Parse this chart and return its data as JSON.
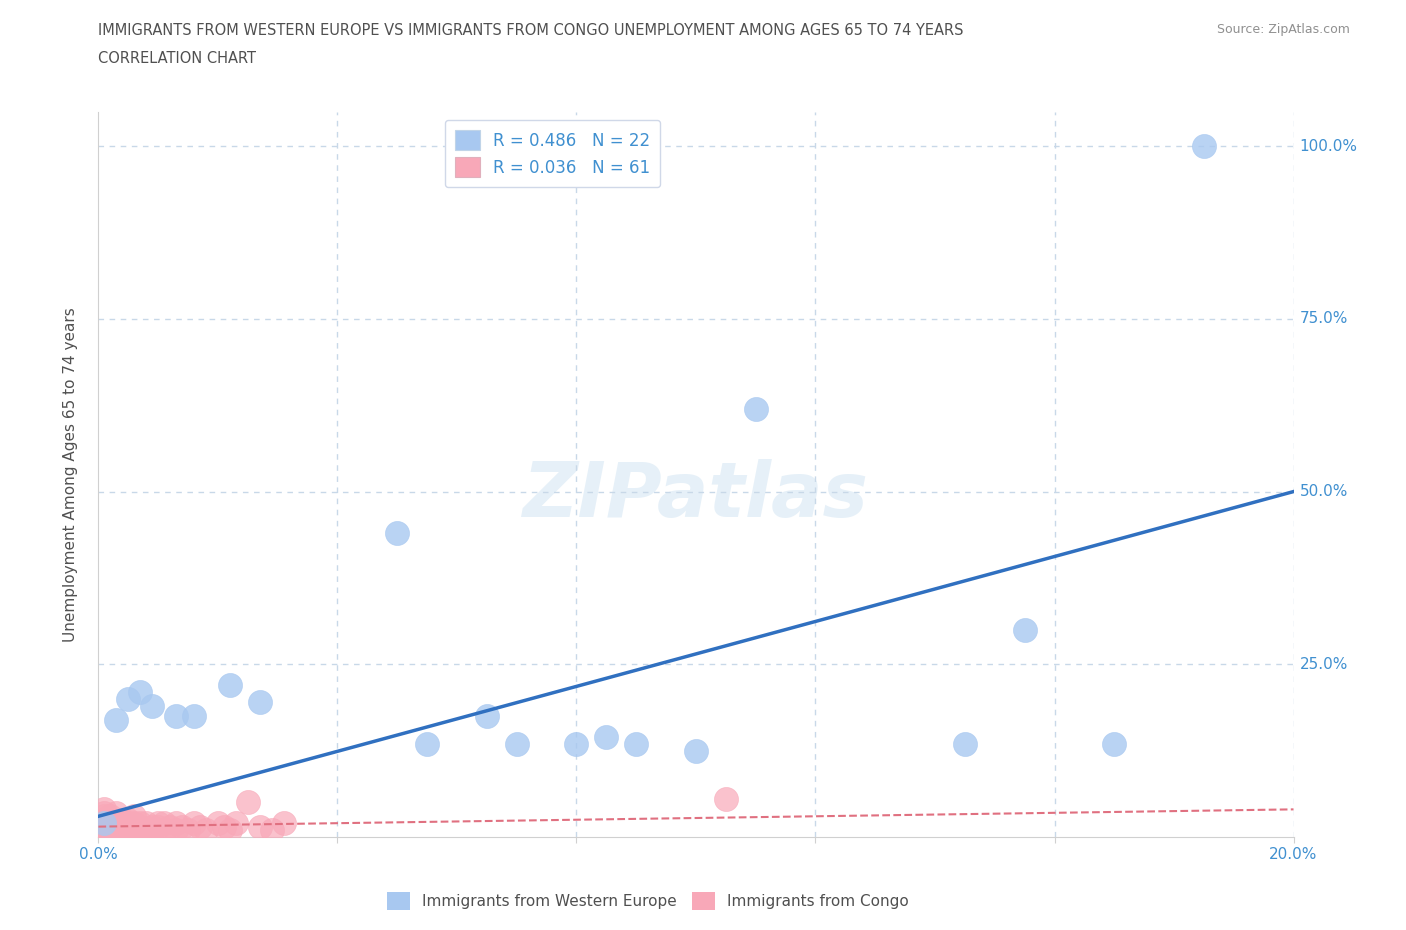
{
  "title_line1": "IMMIGRANTS FROM WESTERN EUROPE VS IMMIGRANTS FROM CONGO UNEMPLOYMENT AMONG AGES 65 TO 74 YEARS",
  "title_line2": "CORRELATION CHART",
  "source": "Source: ZipAtlas.com",
  "ylabel": "Unemployment Among Ages 65 to 74 years",
  "xlim": [
    0.0,
    0.2
  ],
  "ylim": [
    0.0,
    1.05
  ],
  "xticks": [
    0.0,
    0.04,
    0.08,
    0.12,
    0.16,
    0.2
  ],
  "xticklabels": [
    "0.0%",
    "",
    "",
    "",
    "",
    "20.0%"
  ],
  "yticks": [
    0.0,
    0.25,
    0.5,
    0.75,
    1.0
  ],
  "yticklabels": [
    "",
    "25.0%",
    "50.0%",
    "75.0%",
    "100.0%"
  ],
  "watermark": "ZIPatlas",
  "blue_R": 0.486,
  "blue_N": 22,
  "pink_R": 0.036,
  "pink_N": 61,
  "blue_scatter_x": [
    0.001,
    0.003,
    0.005,
    0.007,
    0.009,
    0.013,
    0.016,
    0.022,
    0.027,
    0.05,
    0.055,
    0.065,
    0.07,
    0.08,
    0.085,
    0.09,
    0.1,
    0.11,
    0.145,
    0.155,
    0.17,
    0.185
  ],
  "blue_scatter_y": [
    0.02,
    0.17,
    0.2,
    0.21,
    0.19,
    0.175,
    0.175,
    0.22,
    0.195,
    0.44,
    0.135,
    0.175,
    0.135,
    0.135,
    0.145,
    0.135,
    0.125,
    0.62,
    0.135,
    0.3,
    0.135,
    1.0
  ],
  "pink_scatter_x": [
    0.001,
    0.001,
    0.001,
    0.001,
    0.001,
    0.001,
    0.002,
    0.002,
    0.002,
    0.002,
    0.003,
    0.003,
    0.003,
    0.004,
    0.004,
    0.004,
    0.005,
    0.005,
    0.005,
    0.006,
    0.006,
    0.007,
    0.007,
    0.007,
    0.008,
    0.008,
    0.009,
    0.009,
    0.01,
    0.01,
    0.011,
    0.011,
    0.012,
    0.013,
    0.013,
    0.014,
    0.015,
    0.016,
    0.017,
    0.018,
    0.02,
    0.021,
    0.022,
    0.023,
    0.025,
    0.027,
    0.029,
    0.031,
    0.004,
    0.003,
    0.002,
    0.001,
    0.001,
    0.001,
    0.002,
    0.003,
    0.004,
    0.005,
    0.006,
    0.105,
    0.002
  ],
  "pink_scatter_y": [
    0.01,
    0.02,
    0.01,
    0.02,
    0.03,
    0.01,
    0.015,
    0.02,
    0.01,
    0.025,
    0.015,
    0.02,
    0.01,
    0.015,
    0.02,
    0.01,
    0.015,
    0.02,
    0.01,
    0.015,
    0.02,
    0.01,
    0.02,
    0.015,
    0.01,
    0.02,
    0.015,
    0.01,
    0.015,
    0.02,
    0.01,
    0.02,
    0.015,
    0.01,
    0.02,
    0.015,
    0.01,
    0.02,
    0.015,
    0.01,
    0.02,
    0.015,
    0.01,
    0.02,
    0.05,
    0.015,
    0.01,
    0.02,
    0.025,
    0.01,
    0.02,
    0.04,
    0.035,
    0.025,
    0.03,
    0.035,
    0.02,
    0.025,
    0.03,
    0.055,
    0.015
  ],
  "blue_line_x": [
    0.0,
    0.2
  ],
  "blue_line_y": [
    0.03,
    0.5
  ],
  "pink_line_x": [
    0.0,
    0.2
  ],
  "pink_line_y": [
    0.015,
    0.04
  ],
  "blue_scatter_color": "#a8c8f0",
  "pink_scatter_color": "#f8a8b8",
  "blue_line_color": "#3070c0",
  "pink_line_color": "#e07080",
  "grid_color": "#c8d8e8",
  "title_color": "#505050",
  "source_color": "#909090",
  "axis_label_color": "#505050",
  "tick_label_color_right": "#4090d0",
  "tick_label_color_bottom": "#4090d0",
  "legend_text_color": "#4090d0",
  "background_color": "#ffffff",
  "legend_label_blue": "Immigrants from Western Europe",
  "legend_label_pink": "Immigrants from Congo"
}
